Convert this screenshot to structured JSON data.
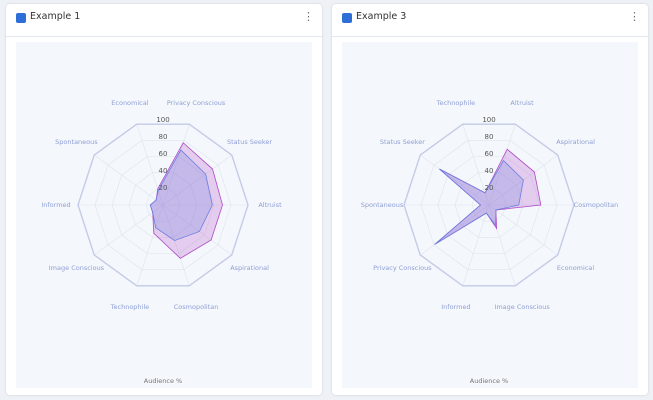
{
  "chart_data": [
    {
      "type": "radar",
      "title": "Example 1",
      "axis_label": "Audience %",
      "categories": [
        "Privacy Conscious",
        "Status Seeker",
        "Altruist",
        "Aspirational",
        "Cosmopolitan",
        "Technophile",
        "Image Conscious",
        "Informed",
        "Spontaneous",
        "Economical"
      ],
      "series": [
        {
          "color": "#b04ac8",
          "values": [
            77,
            72,
            70,
            70,
            66,
            35,
            15,
            15,
            10,
            20
          ]
        },
        {
          "color": "#6a7fe0",
          "values": [
            68,
            62,
            58,
            53,
            44,
            28,
            15,
            15,
            10,
            18
          ]
        }
      ],
      "rlim": [
        0,
        100
      ],
      "rticks": [
        20,
        40,
        60,
        80,
        100
      ]
    },
    {
      "type": "radar",
      "title": "Example 3",
      "axis_label": "Audience %",
      "categories": [
        "Altruist",
        "Aspirational",
        "Cosmopolitan",
        "Economical",
        "Image Conscious",
        "Informed",
        "Privacy Conscious",
        "Spontaneous",
        "Status Seeker",
        "Technophile"
      ],
      "series": [
        {
          "color": "#b04ac8",
          "values": [
            69,
            66,
            61,
            10,
            29,
            10,
            79,
            10,
            72,
            15
          ]
        },
        {
          "color": "#6a7fe0",
          "values": [
            55,
            50,
            35,
            10,
            25,
            10,
            79,
            10,
            72,
            15
          ]
        }
      ],
      "rlim": [
        0,
        100
      ],
      "rticks": [
        20,
        40,
        60,
        80,
        100
      ]
    }
  ]
}
